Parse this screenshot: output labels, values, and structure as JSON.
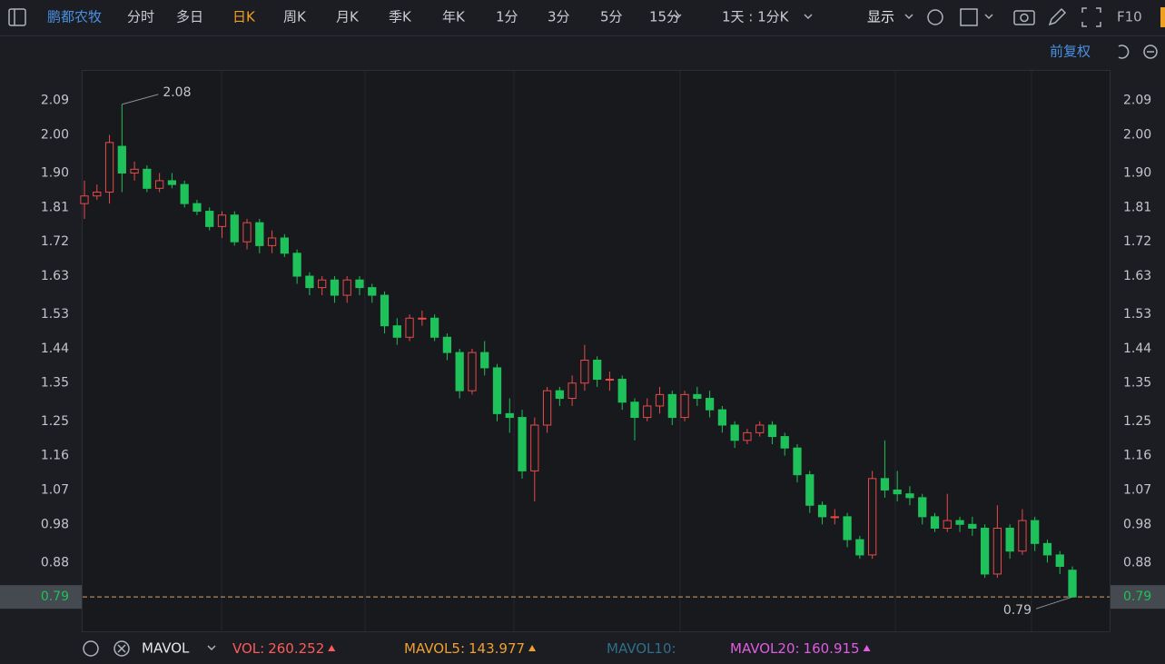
{
  "toolbar": {
    "stock": "鹏都农牧",
    "tabs": [
      "分时",
      "多日",
      "日K",
      "周K",
      "月K",
      "季K",
      "年K",
      "1分",
      "3分",
      "5分",
      "15分"
    ],
    "active_tab": "日K",
    "period": "1天 : 1分K",
    "display": "显示",
    "f10": "F10",
    "adjust": "前复权"
  },
  "indicator_bar": {
    "name": "MAVOL",
    "items": [
      {
        "name": "VOL:",
        "value": 260.252,
        "color": "#ff5a5a"
      },
      {
        "name": "MAVOL5:",
        "value": 143.977,
        "color": "#f0a030"
      },
      {
        "name": "MAVOL10:",
        "color": "#2f6f87"
      },
      {
        "name": "MAVOL20:",
        "value": 160.915,
        "color": "#e05ce0"
      }
    ]
  },
  "chart_data": {
    "type": "candlestick",
    "up_color": "#e84a4a",
    "down_color": "#1fc15a",
    "ylim": [
      0.7,
      2.17
    ],
    "yticks": [
      2.09,
      {
        "value": 2,
        "label": "2.00"
      },
      {
        "value": 1.9,
        "label": "1.90"
      },
      1.81,
      1.72,
      1.63,
      1.53,
      1.44,
      1.35,
      1.25,
      1.16,
      1.07,
      0.98,
      0.88,
      0.79
    ],
    "last_price": 0.79,
    "max_label": 2.08,
    "min_label": 0.79,
    "open": [
      1.82,
      1.84,
      1.85,
      1.97,
      1.9,
      1.91,
      1.86,
      1.88,
      1.87,
      1.82,
      1.8,
      1.76,
      1.79,
      1.72,
      1.77,
      1.71,
      1.73,
      1.69,
      1.63,
      1.6,
      1.62,
      1.58,
      1.62,
      1.6,
      1.58,
      1.5,
      1.47,
      1.52,
      1.52,
      1.47,
      1.43,
      1.33,
      1.43,
      1.39,
      1.27,
      1.26,
      1.12,
      1.24,
      1.33,
      1.31,
      1.35,
      1.41,
      1.36,
      1.36,
      1.3,
      1.26,
      1.29,
      1.32,
      1.26,
      1.32,
      1.31,
      1.28,
      1.24,
      1.2,
      1.22,
      1.24,
      1.21,
      1.18,
      1.11,
      1.03,
      1.0,
      1.0,
      0.94,
      0.9,
      1.1,
      1.07,
      1.06,
      1.05,
      1.0,
      0.97,
      0.99,
      0.98,
      0.97,
      0.85,
      0.97,
      0.91,
      0.99,
      0.93,
      0.9,
      0.86
    ],
    "high": [
      1.88,
      1.87,
      2.0,
      2.08,
      1.93,
      1.92,
      1.9,
      1.9,
      1.88,
      1.83,
      1.81,
      1.8,
      1.8,
      1.78,
      1.78,
      1.75,
      1.74,
      1.7,
      1.64,
      1.63,
      1.63,
      1.63,
      1.63,
      1.61,
      1.59,
      1.52,
      1.53,
      1.54,
      1.53,
      1.48,
      1.44,
      1.44,
      1.46,
      1.4,
      1.31,
      1.28,
      1.26,
      1.34,
      1.34,
      1.37,
      1.45,
      1.42,
      1.38,
      1.37,
      1.31,
      1.31,
      1.34,
      1.33,
      1.33,
      1.34,
      1.33,
      1.29,
      1.25,
      1.23,
      1.25,
      1.25,
      1.22,
      1.19,
      1.12,
      1.04,
      1.02,
      1.01,
      0.95,
      1.12,
      1.2,
      1.12,
      1.08,
      1.06,
      1.01,
      1.06,
      1.0,
      1.0,
      0.98,
      1.03,
      0.98,
      1.02,
      1.0,
      0.94,
      0.91,
      0.87
    ],
    "low": [
      1.78,
      1.83,
      1.82,
      1.85,
      1.88,
      1.85,
      1.85,
      1.86,
      1.81,
      1.79,
      1.75,
      1.73,
      1.71,
      1.7,
      1.69,
      1.69,
      1.68,
      1.61,
      1.58,
      1.58,
      1.56,
      1.56,
      1.58,
      1.56,
      1.48,
      1.45,
      1.46,
      1.5,
      1.46,
      1.41,
      1.31,
      1.32,
      1.37,
      1.25,
      1.22,
      1.1,
      1.04,
      1.22,
      1.29,
      1.29,
      1.33,
      1.34,
      1.33,
      1.28,
      1.2,
      1.25,
      1.27,
      1.24,
      1.25,
      1.29,
      1.26,
      1.22,
      1.18,
      1.19,
      1.21,
      1.19,
      1.16,
      1.09,
      1.01,
      0.98,
      0.98,
      0.92,
      0.89,
      0.89,
      1.05,
      1.04,
      1.03,
      0.98,
      0.96,
      0.96,
      0.96,
      0.95,
      0.84,
      0.84,
      0.89,
      0.9,
      0.91,
      0.88,
      0.85,
      0.79
    ],
    "close": [
      1.84,
      1.85,
      1.98,
      1.9,
      1.91,
      1.86,
      1.88,
      1.87,
      1.82,
      1.8,
      1.76,
      1.79,
      1.72,
      1.77,
      1.71,
      1.73,
      1.69,
      1.63,
      1.6,
      1.62,
      1.58,
      1.62,
      1.6,
      1.58,
      1.5,
      1.47,
      1.52,
      1.52,
      1.47,
      1.43,
      1.33,
      1.43,
      1.39,
      1.27,
      1.26,
      1.12,
      1.24,
      1.33,
      1.31,
      1.35,
      1.41,
      1.36,
      1.36,
      1.3,
      1.26,
      1.29,
      1.32,
      1.26,
      1.32,
      1.31,
      1.28,
      1.24,
      1.2,
      1.22,
      1.24,
      1.21,
      1.18,
      1.11,
      1.03,
      1.0,
      1.0,
      0.94,
      0.9,
      1.1,
      1.07,
      1.06,
      1.05,
      1.0,
      0.97,
      0.99,
      0.98,
      0.97,
      0.85,
      0.97,
      0.91,
      0.99,
      0.93,
      0.9,
      0.87,
      0.79
    ]
  }
}
